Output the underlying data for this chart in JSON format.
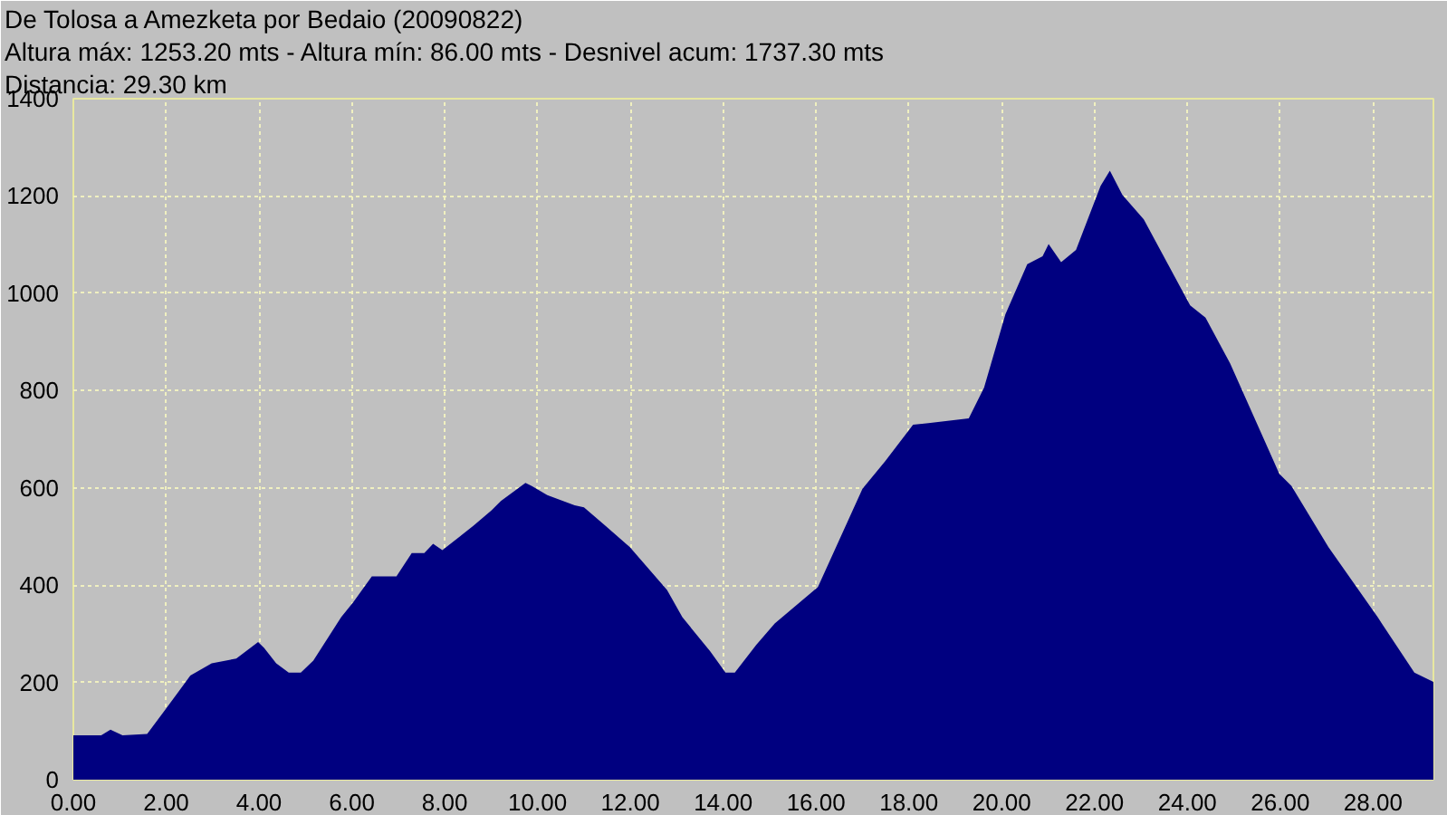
{
  "chart_data": {
    "type": "area",
    "title": "De Tolosa a Amezketa por Bedaio (20090822)",
    "subtitle": "Altura máx: 1253.20 mts - Altura mín: 86.00 mts - Desnivel acum: 1737.30 mts",
    "annotations": [
      "Distancia: 29.30 km"
    ],
    "x": [
      0,
      0.6,
      0.8,
      1.06,
      1.59,
      1.99,
      2.52,
      2.98,
      3.51,
      3.98,
      4.11,
      4.37,
      4.64,
      4.9,
      5.17,
      5.77,
      6.03,
      6.43,
      6.96,
      7.29,
      7.56,
      7.75,
      7.95,
      8.62,
      9.01,
      9.21,
      9.74,
      9.87,
      10.21,
      10.8,
      11.0,
      11.46,
      11.99,
      12.79,
      13.12,
      13.72,
      14.05,
      14.25,
      14.71,
      15.11,
      16.04,
      17.0,
      17.49,
      18.09,
      18.42,
      19.29,
      19.62,
      20.08,
      20.55,
      20.88,
      21.01,
      21.28,
      21.6,
      22.13,
      22.33,
      22.6,
      23.06,
      24.06,
      24.39,
      24.92,
      25.98,
      26.24,
      27.04,
      28.1,
      28.89,
      29.3
    ],
    "series": [
      {
        "color": "#000080",
        "values": [
          91,
          91,
          103,
          91,
          94,
          145,
          214,
          239,
          249,
          283,
          271,
          239,
          220,
          220,
          245,
          334,
          365,
          418,
          418,
          466,
          466,
          485,
          472,
          522,
          554,
          573,
          610,
          604,
          585,
          564,
          560,
          522,
          478,
          390,
          334,
          264,
          220,
          220,
          277,
          321,
          396,
          598,
          655,
          730,
          733,
          743,
          806,
          957,
          1060,
          1076,
          1101,
          1064,
          1089,
          1221,
          1252,
          1202,
          1152,
          975,
          950,
          856,
          629,
          604,
          478,
          334,
          220,
          201
        ]
      }
    ],
    "xlim": [
      0,
      29.3
    ],
    "ylim": [
      0,
      1400
    ],
    "xticks": [
      {
        "value": 0,
        "label": "0.00"
      },
      {
        "value": 2,
        "label": "2.00"
      },
      {
        "value": 4,
        "label": "4.00"
      },
      {
        "value": 6,
        "label": "6.00"
      },
      {
        "value": 8,
        "label": "8.00"
      },
      {
        "value": 10,
        "label": "10.00"
      },
      {
        "value": 12,
        "label": "12.00"
      },
      {
        "value": 14,
        "label": "14.00"
      },
      {
        "value": 16,
        "label": "16.00"
      },
      {
        "value": 18,
        "label": "18.00"
      },
      {
        "value": 20,
        "label": "20.00"
      },
      {
        "value": 22,
        "label": "22.00"
      },
      {
        "value": 24,
        "label": "24.00"
      },
      {
        "value": 26,
        "label": "26.00"
      },
      {
        "value": 28,
        "label": "28.00"
      }
    ],
    "yticks": [
      0,
      200,
      400,
      600,
      800,
      1000,
      1200,
      1400
    ],
    "grid": true
  }
}
